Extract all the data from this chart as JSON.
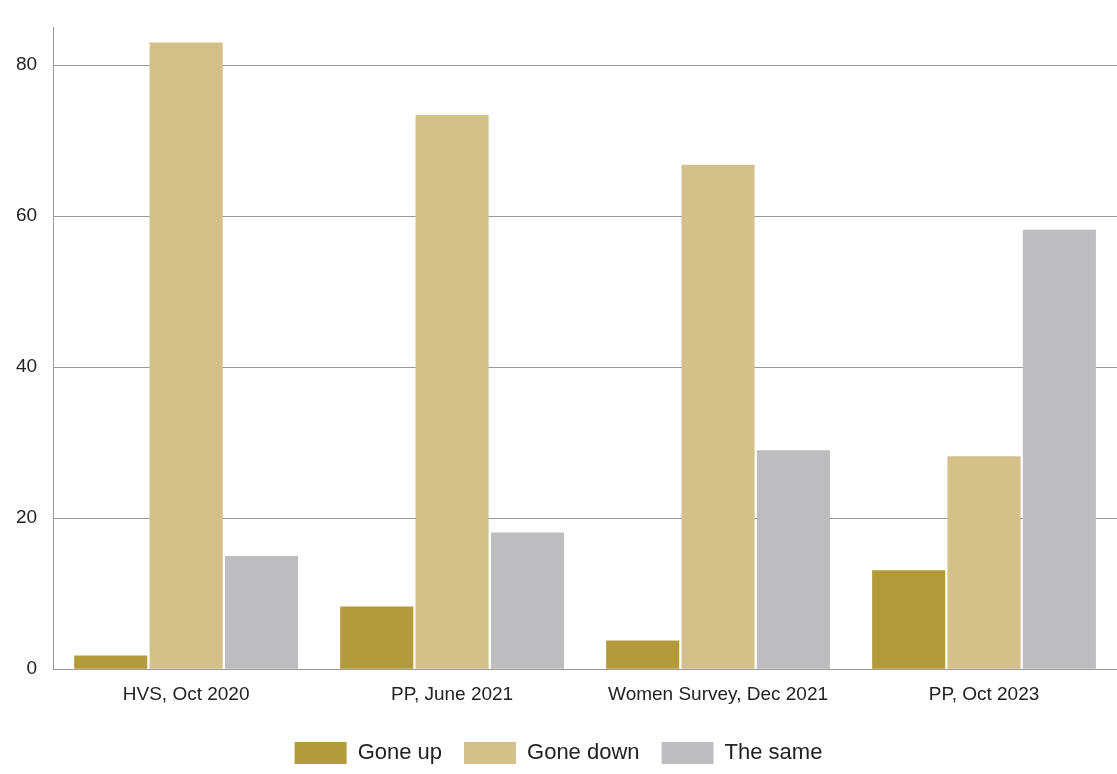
{
  "chart_data": {
    "type": "bar",
    "categories": [
      "HVS, Oct 2020",
      "PP, June 2021",
      "Women Survey, Dec 2021",
      "PP, Oct 2023"
    ],
    "series": [
      {
        "name": "Gone up",
        "color": "#b39a3a",
        "values": [
          1.8,
          8.3,
          3.8,
          13.1
        ]
      },
      {
        "name": "Gone down",
        "color": "#d3c189",
        "values": [
          83.0,
          73.4,
          66.8,
          28.2
        ]
      },
      {
        "name": "The same",
        "color": "#bdbdbf",
        "values": [
          15.0,
          18.1,
          29.0,
          58.2
        ]
      }
    ],
    "ylim": [
      0,
      85
    ],
    "yticks": [
      0,
      20,
      40,
      60,
      80
    ],
    "grid": "y",
    "legend": "bottom"
  }
}
